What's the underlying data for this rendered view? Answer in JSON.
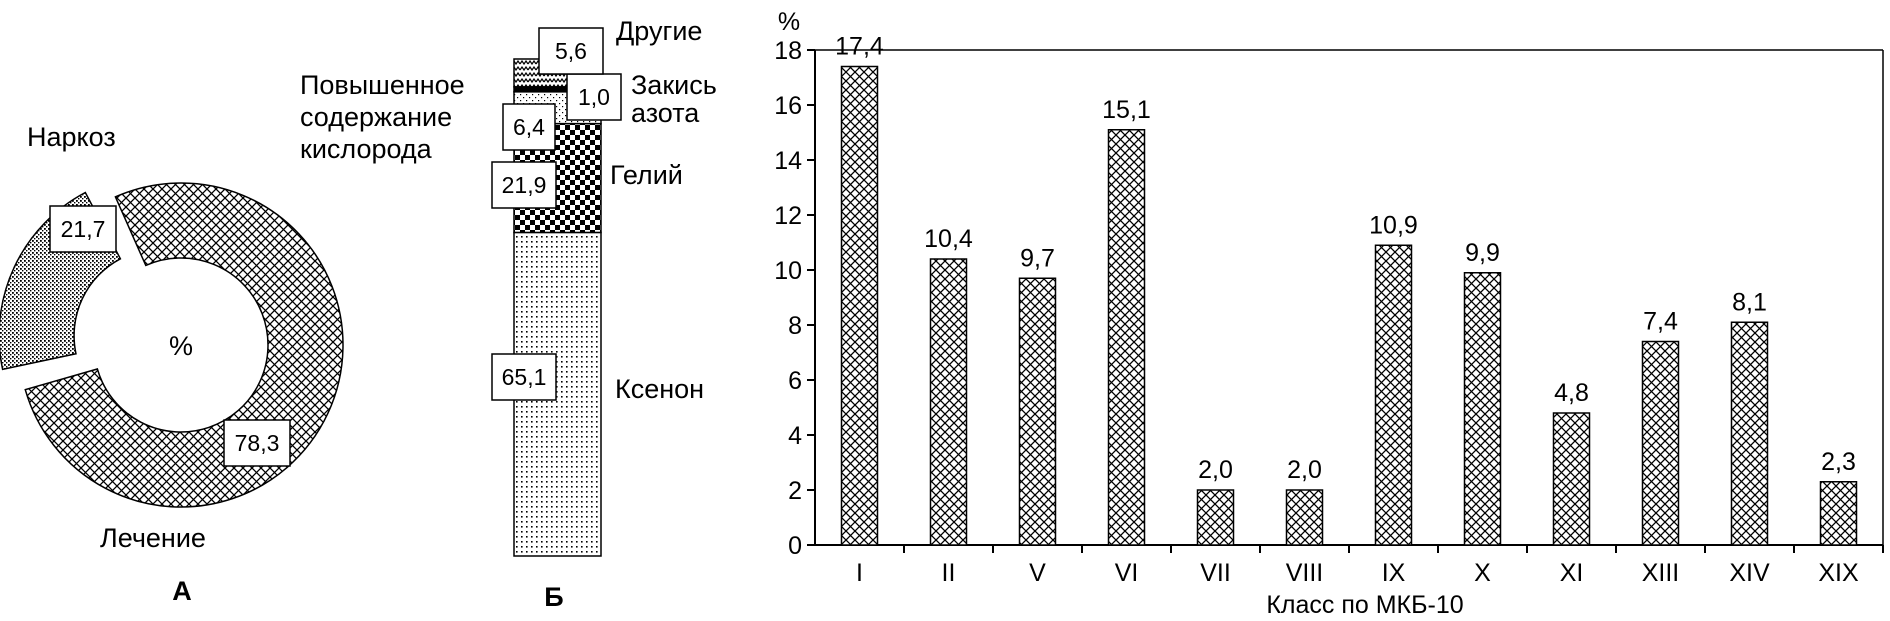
{
  "chart_data": [
    {
      "type": "pie",
      "panel_label": "А",
      "center_label": "%",
      "slices": [
        {
          "name": "Наркоз",
          "value": 21.7,
          "label": "21,7",
          "pattern": "dots-dense"
        },
        {
          "name": "Лечение",
          "value": 78.3,
          "label": "78,3",
          "pattern": "crosshatch"
        }
      ]
    },
    {
      "type": "bar",
      "subtype": "stacked-100",
      "panel_label": "Б",
      "segments": [
        {
          "name": "Ксенон",
          "value": 65.1,
          "label": "65,1",
          "pattern": "dots"
        },
        {
          "name": "Гелий",
          "value": 21.9,
          "label": "21,9",
          "pattern": "checker"
        },
        {
          "name_lines": [
            "Повышенное",
            "содержание",
            "кислорода"
          ],
          "value": 6.4,
          "label": "6,4",
          "pattern": "dots-fine"
        },
        {
          "name_lines": [
            "Закись",
            "азота"
          ],
          "value": 1.0,
          "label": "1,0",
          "pattern": "solid"
        },
        {
          "name": "Другие",
          "value": 5.6,
          "label": "5,6",
          "pattern": "zigzag"
        }
      ]
    },
    {
      "type": "bar",
      "ylabel": "%",
      "xlabel": "Класс по МКБ-10",
      "ylim": [
        0,
        18
      ],
      "yticks": [
        0,
        2,
        4,
        6,
        8,
        10,
        12,
        14,
        16,
        18
      ],
      "categories": [
        "I",
        "II",
        "V",
        "VI",
        "VII",
        "VIII",
        "IX",
        "X",
        "XI",
        "XIII",
        "XIV",
        "XIX"
      ],
      "values": [
        17.4,
        10.4,
        9.7,
        15.1,
        2.0,
        2.0,
        10.9,
        9.9,
        4.8,
        7.4,
        8.1,
        2.3
      ],
      "value_labels": [
        "17,4",
        "10,4",
        "9,7",
        "15,1",
        "2,0",
        "2,0",
        "10,9",
        "9,9",
        "4,8",
        "7,4",
        "8,1",
        "2,3"
      ],
      "pattern": "crosshatch"
    }
  ]
}
